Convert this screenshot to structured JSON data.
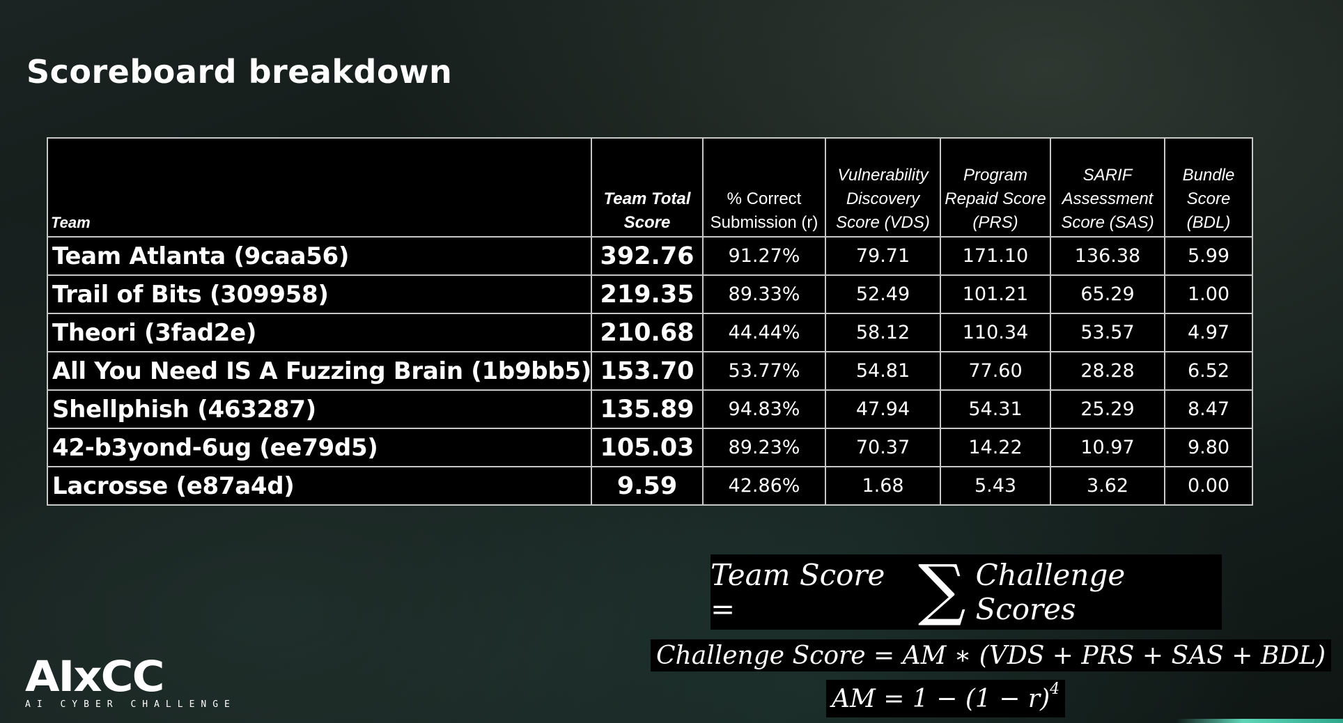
{
  "title": "Scoreboard breakdown",
  "table": {
    "headers": {
      "team": "Team",
      "total": "Team Total Score",
      "correct": "% Correct Submission (r)",
      "vds": "Vulnerability Discovery Score (VDS)",
      "prs": "Program Repaid Score (PRS)",
      "sas": "SARIF Assessment Score (SAS)",
      "bdl": "Bundle Score (BDL)"
    },
    "rows": [
      {
        "team": "Team Atlanta (9caa56)",
        "total": "392.76",
        "correct": "91.27%",
        "vds": "79.71",
        "prs": "171.10",
        "sas": "136.38",
        "bdl": "5.99"
      },
      {
        "team": "Trail of Bits (309958)",
        "total": "219.35",
        "correct": "89.33%",
        "vds": "52.49",
        "prs": "101.21",
        "sas": "65.29",
        "bdl": "1.00"
      },
      {
        "team": "Theori (3fad2e)",
        "total": "210.68",
        "correct": "44.44%",
        "vds": "58.12",
        "prs": "110.34",
        "sas": "53.57",
        "bdl": "4.97"
      },
      {
        "team": "All You Need IS A Fuzzing Brain (1b9bb5)",
        "total": "153.70",
        "correct": "53.77%",
        "vds": "54.81",
        "prs": "77.60",
        "sas": "28.28",
        "bdl": "6.52"
      },
      {
        "team": "Shellphish (463287)",
        "total": "135.89",
        "correct": "94.83%",
        "vds": "47.94",
        "prs": "54.31",
        "sas": "25.29",
        "bdl": "8.47"
      },
      {
        "team": "42-b3yond-6ug (ee79d5)",
        "total": "105.03",
        "correct": "89.23%",
        "vds": "70.37",
        "prs": "14.22",
        "sas": "10.97",
        "bdl": "9.80"
      },
      {
        "team": "Lacrosse (e87a4d)",
        "total": "9.59",
        "correct": "42.86%",
        "vds": "1.68",
        "prs": "5.43",
        "sas": "3.62",
        "bdl": "0.00"
      }
    ]
  },
  "formulas": {
    "team_score_left": "Team Score =",
    "sigma": "∑",
    "team_score_right": "Challenge Scores",
    "challenge_score": "Challenge Score = AM ∗ (VDS + PRS + SAS + BDL)",
    "am_base": "AM = 1 − (1 − r)",
    "am_exp": "4"
  },
  "logo": {
    "mark": "AIxCC",
    "sub": "AI CYBER CHALLENGE"
  },
  "colors": {
    "background": "#141c1a",
    "table_bg": "#000000",
    "border": "#c8c8c8",
    "accent": "#5fd6b8"
  }
}
